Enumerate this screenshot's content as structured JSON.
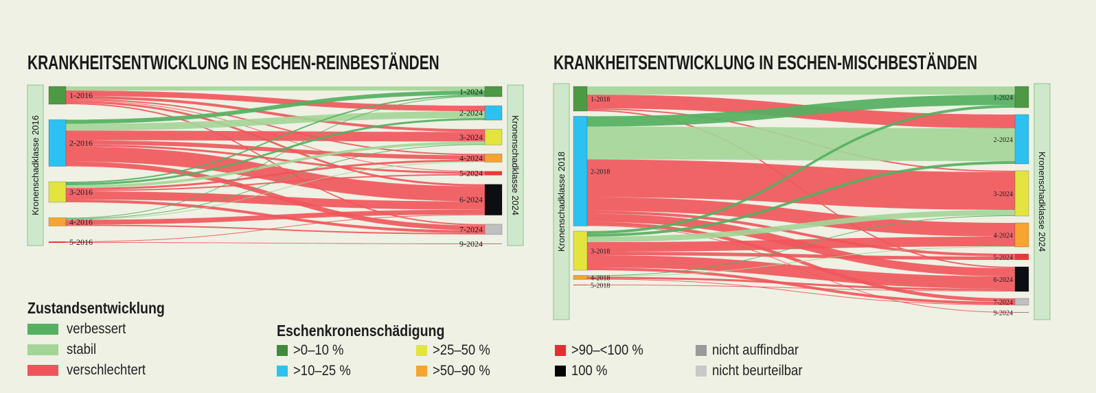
{
  "colors": {
    "background": "#eef1e4",
    "status": {
      "verbessert": "#55b061",
      "stabil": "#a3d597",
      "verschlechtert": "#f0545a"
    },
    "classes": {
      "1": "#4e9a44",
      "2": "#2cc1f0",
      "3": "#e3e43f",
      "4": "#f7a431",
      "5": "#e63a3a",
      "6": "#0c0e12",
      "7": "#bfbfbf",
      "9": "#888888"
    }
  },
  "chart_data": [
    {
      "type": "sankey",
      "title": "KRANKHEITSENTWICKLUNG IN ESCHEN-REINBESTÄNDEN",
      "left_axis_label": "Kronenschadklasse 2016",
      "right_axis_label": "Kronenschadklasse 2024",
      "left_nodes": [
        {
          "label": "1-2016",
          "class": "1"
        },
        {
          "label": "2-2016",
          "class": "2"
        },
        {
          "label": "3-2016",
          "class": "3"
        },
        {
          "label": "4-2016",
          "class": "4"
        },
        {
          "label": "5-2016",
          "class": "5"
        }
      ],
      "right_nodes": [
        {
          "label": "1-2024",
          "class": "1"
        },
        {
          "label": "2-2024",
          "class": "2"
        },
        {
          "label": "3-2024",
          "class": "3"
        },
        {
          "label": "4-2024",
          "class": "4"
        },
        {
          "label": "5-2024",
          "class": "5"
        },
        {
          "label": "6-2024",
          "class": "6"
        },
        {
          "label": "7-2024",
          "class": "7"
        },
        {
          "label": "9-2024",
          "class": "9"
        }
      ],
      "links": [
        {
          "from": 0,
          "to": 0,
          "value": 6,
          "status": "stabil"
        },
        {
          "from": 0,
          "to": 1,
          "value": 8,
          "status": "verschlechtert"
        },
        {
          "from": 0,
          "to": 2,
          "value": 4,
          "status": "verschlechtert"
        },
        {
          "from": 0,
          "to": 3,
          "value": 2,
          "status": "verschlechtert"
        },
        {
          "from": 0,
          "to": 4,
          "value": 1,
          "status": "verschlechtert"
        },
        {
          "from": 0,
          "to": 5,
          "value": 3,
          "status": "verschlechtert"
        },
        {
          "from": 0,
          "to": 6,
          "value": 2,
          "status": "verschlechtert"
        },
        {
          "from": 1,
          "to": 0,
          "value": 6,
          "status": "verbessert"
        },
        {
          "from": 1,
          "to": 1,
          "value": 10,
          "status": "stabil"
        },
        {
          "from": 1,
          "to": 2,
          "value": 14,
          "status": "verschlechtert"
        },
        {
          "from": 1,
          "to": 3,
          "value": 6,
          "status": "verschlechtert"
        },
        {
          "from": 1,
          "to": 4,
          "value": 3,
          "status": "verschlechtert"
        },
        {
          "from": 1,
          "to": 5,
          "value": 22,
          "status": "verschlechtert"
        },
        {
          "from": 1,
          "to": 6,
          "value": 7,
          "status": "verschlechtert"
        },
        {
          "from": 2,
          "to": 0,
          "value": 2,
          "status": "verbessert"
        },
        {
          "from": 2,
          "to": 1,
          "value": 3,
          "status": "verbessert"
        },
        {
          "from": 2,
          "to": 2,
          "value": 4,
          "status": "stabil"
        },
        {
          "from": 2,
          "to": 3,
          "value": 3,
          "status": "verschlechtert"
        },
        {
          "from": 2,
          "to": 4,
          "value": 2,
          "status": "verschlechtert"
        },
        {
          "from": 2,
          "to": 5,
          "value": 12,
          "status": "verschlechtert"
        },
        {
          "from": 2,
          "to": 6,
          "value": 4,
          "status": "verschlechtert"
        },
        {
          "from": 3,
          "to": 0,
          "value": 1,
          "status": "verbessert"
        },
        {
          "from": 3,
          "to": 2,
          "value": 1,
          "status": "verbessert"
        },
        {
          "from": 3,
          "to": 3,
          "value": 1,
          "status": "stabil"
        },
        {
          "from": 3,
          "to": 5,
          "value": 7,
          "status": "verschlechtert"
        },
        {
          "from": 3,
          "to": 6,
          "value": 2,
          "status": "verschlechtert"
        },
        {
          "from": 4,
          "to": 5,
          "value": 1,
          "status": "verschlechtert"
        },
        {
          "from": 4,
          "to": 7,
          "value": 1,
          "status": "verschlechtert"
        }
      ]
    },
    {
      "type": "sankey",
      "title": "KRANKHEITSENTWICKLUNG IN ESCHEN-MISCHBESTÄNDEN",
      "left_axis_label": "Kronenschadklasse 2018",
      "right_axis_label": "Kronenschadklasse 2024",
      "left_nodes": [
        {
          "label": "1-2018",
          "class": "1"
        },
        {
          "label": "2-2018",
          "class": "2"
        },
        {
          "label": "3-2018",
          "class": "3"
        },
        {
          "label": "4-2018",
          "class": "4"
        },
        {
          "label": "5-2018",
          "class": "5"
        }
      ],
      "right_nodes": [
        {
          "label": "1-2024",
          "class": "1"
        },
        {
          "label": "2-2024",
          "class": "2"
        },
        {
          "label": "3-2024",
          "class": "3"
        },
        {
          "label": "4-2024",
          "class": "4"
        },
        {
          "label": "5-2024",
          "class": "5"
        },
        {
          "label": "6-2024",
          "class": "6"
        },
        {
          "label": "7-2024",
          "class": "7"
        },
        {
          "label": "9-2024",
          "class": "9"
        }
      ],
      "links": [
        {
          "from": 0,
          "to": 0,
          "value": 12,
          "status": "stabil"
        },
        {
          "from": 0,
          "to": 1,
          "value": 20,
          "status": "verschlechtert"
        },
        {
          "from": 0,
          "to": 2,
          "value": 2,
          "status": "verschlechtert"
        },
        {
          "from": 0,
          "to": 5,
          "value": 2,
          "status": "verschlechtert"
        },
        {
          "from": 1,
          "to": 0,
          "value": 15,
          "status": "verbessert"
        },
        {
          "from": 1,
          "to": 1,
          "value": 48,
          "status": "stabil"
        },
        {
          "from": 1,
          "to": 2,
          "value": 55,
          "status": "verschlechtert"
        },
        {
          "from": 1,
          "to": 3,
          "value": 20,
          "status": "verschlechtert"
        },
        {
          "from": 1,
          "to": 4,
          "value": 4,
          "status": "verschlechtert"
        },
        {
          "from": 1,
          "to": 5,
          "value": 12,
          "status": "verschlechtert"
        },
        {
          "from": 1,
          "to": 6,
          "value": 5,
          "status": "verschlechtert"
        },
        {
          "from": 1,
          "to": 7,
          "value": 1,
          "status": "verschlechtert"
        },
        {
          "from": 2,
          "to": 0,
          "value": 4,
          "status": "verbessert"
        },
        {
          "from": 2,
          "to": 1,
          "value": 4,
          "status": "verbessert"
        },
        {
          "from": 2,
          "to": 2,
          "value": 8,
          "status": "stabil"
        },
        {
          "from": 2,
          "to": 3,
          "value": 14,
          "status": "verschlechtert"
        },
        {
          "from": 2,
          "to": 4,
          "value": 5,
          "status": "verschlechtert"
        },
        {
          "from": 2,
          "to": 5,
          "value": 18,
          "status": "verschlechtert"
        },
        {
          "from": 2,
          "to": 6,
          "value": 4,
          "status": "verschlechtert"
        },
        {
          "from": 3,
          "to": 2,
          "value": 1,
          "status": "verbessert"
        },
        {
          "from": 3,
          "to": 3,
          "value": 1,
          "status": "stabil"
        },
        {
          "from": 3,
          "to": 5,
          "value": 3,
          "status": "verschlechtert"
        },
        {
          "from": 3,
          "to": 6,
          "value": 1,
          "status": "verschlechtert"
        },
        {
          "from": 4,
          "to": 5,
          "value": 1,
          "status": "verschlechtert"
        }
      ]
    }
  ],
  "legend_status": {
    "title": "Zustandsentwicklung",
    "items": [
      {
        "label": "verbessert",
        "key": "verbessert"
      },
      {
        "label": "stabil",
        "key": "stabil"
      },
      {
        "label": "verschlechtert",
        "key": "verschlechtert"
      }
    ]
  },
  "legend_damage": {
    "title": "Eschenkronenschädigung",
    "items": [
      {
        "label": ">0–10 %",
        "color": "#3f8b3c"
      },
      {
        "label": ">10–25 %",
        "color": "#2cc1f0"
      },
      {
        "label": ">25–50 %",
        "color": "#e3e43f"
      },
      {
        "label": ">50–90 %",
        "color": "#f7a431"
      },
      {
        "label": ">90–<100 %",
        "color": "#e32f2f"
      },
      {
        "label": "100 %",
        "color": "#050505"
      },
      {
        "label": "nicht auffindbar",
        "color": "#9a9a9a"
      },
      {
        "label": "nicht beurteilbar",
        "color": "#c8c8c8"
      }
    ]
  }
}
